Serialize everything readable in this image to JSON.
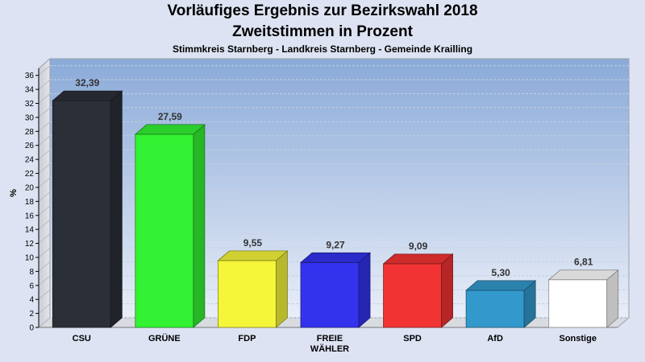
{
  "chart_data": {
    "type": "bar",
    "title": "Vorläufiges Ergebnis zur Bezirkswahl 2018",
    "subtitle_line2": "Zweitstimmen in Prozent",
    "subtitle": "Stimmkreis Starnberg - Landkreis Starnberg - Gemeinde Krailling",
    "ylabel": "%",
    "ylim": [
      0,
      37
    ],
    "yticks": [
      0,
      2,
      4,
      6,
      8,
      10,
      12,
      14,
      16,
      18,
      20,
      22,
      24,
      26,
      28,
      30,
      32,
      34,
      36
    ],
    "categories": [
      [
        "CSU"
      ],
      [
        "GRÜNE"
      ],
      [
        "FDP"
      ],
      [
        "FREIE",
        "WÄHLER"
      ],
      [
        "SPD"
      ],
      [
        "AfD"
      ],
      [
        "Sonstige"
      ]
    ],
    "values": [
      32.39,
      27.59,
      9.55,
      9.27,
      9.09,
      5.3,
      6.81
    ],
    "labels": [
      "32,39",
      "27,59",
      "9,55",
      "9,27",
      "9,09",
      "5,30",
      "6,81"
    ],
    "colors": [
      "#2b2f38",
      "#33f233",
      "#f5f53a",
      "#3333ee",
      "#f23333",
      "#3399cc",
      "#ffffff"
    ],
    "grid": true,
    "legend": "none"
  }
}
